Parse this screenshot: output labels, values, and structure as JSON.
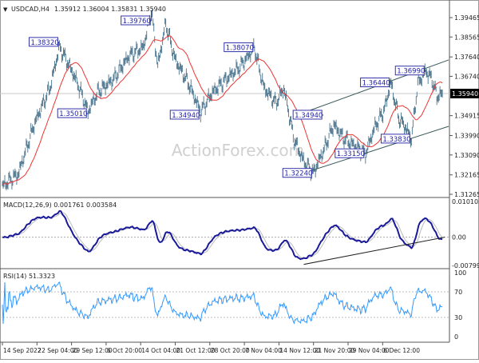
{
  "header": {
    "symbol": "USDCAD,H4",
    "ohlc": "1.35912 1.36004 1.35831 1.35940"
  },
  "watermark": "ActionForex.com",
  "colors": {
    "bars": "#5b8199",
    "ma": "#ee3333",
    "macd": "#1a1a9a",
    "signal": "#bbbbbb",
    "rsi": "#3399ff",
    "label_border": "#3333aa",
    "trendline": "#333333"
  },
  "chart_data": [
    {
      "type": "ohlc",
      "name_label": "USDCAD,H4",
      "current_price": "1.35940",
      "y_ticks": [
        "1.39465",
        "1.38565",
        "1.37640",
        "1.36740",
        "1.34915",
        "1.33990",
        "1.33090",
        "1.32165",
        "1.31265"
      ],
      "ylim": [
        1.31265,
        1.39465
      ],
      "x_ticks": [
        "14 Sep 2022",
        "22 Sep 04:00",
        "29 Sep 12:00",
        "6 Oct 20:00",
        "14 Oct 04:00",
        "21 Oct 12:00",
        "28 Oct 20:00",
        "7 Nov 04:00",
        "14 Nov 12:00",
        "21 Nov 20:00",
        "29 Nov 04:00",
        "6 Dec 12:00"
      ],
      "price_path": [
        [
          0,
          1.3165
        ],
        [
          20,
          1.322
        ],
        [
          40,
          1.345
        ],
        [
          60,
          1.362
        ],
        [
          72,
          1.381
        ],
        [
          85,
          1.372
        ],
        [
          95,
          1.364
        ],
        [
          108,
          1.351
        ],
        [
          120,
          1.36
        ],
        [
          140,
          1.366
        ],
        [
          160,
          1.377
        ],
        [
          178,
          1.381
        ],
        [
          188,
          1.3976
        ],
        [
          196,
          1.372
        ],
        [
          206,
          1.392
        ],
        [
          218,
          1.375
        ],
        [
          235,
          1.364
        ],
        [
          250,
          1.351
        ],
        [
          265,
          1.36
        ],
        [
          285,
          1.367
        ],
        [
          300,
          1.372
        ],
        [
          318,
          1.3807
        ],
        [
          330,
          1.362
        ],
        [
          345,
          1.355
        ],
        [
          355,
          1.362
        ],
        [
          368,
          1.338
        ],
        [
          380,
          1.328
        ],
        [
          392,
          1.3224
        ],
        [
          405,
          1.333
        ],
        [
          418,
          1.345
        ],
        [
          430,
          1.339
        ],
        [
          445,
          1.335
        ],
        [
          458,
          1.3315
        ],
        [
          470,
          1.344
        ],
        [
          482,
          1.352
        ],
        [
          490,
          1.3644
        ],
        [
          500,
          1.348
        ],
        [
          508,
          1.344
        ],
        [
          516,
          1.3383
        ],
        [
          524,
          1.364
        ],
        [
          534,
          1.3699
        ],
        [
          542,
          1.366
        ],
        [
          548,
          1.358
        ],
        [
          555,
          1.3594
        ]
      ],
      "labels": [
        {
          "text": "1.39760",
          "bar": 188,
          "price": 1.3976
        },
        {
          "text": "1.38320",
          "bar": 72,
          "price": 1.3832
        },
        {
          "text": "1.35010",
          "bar": 108,
          "price": 1.3501
        },
        {
          "text": "1.38070",
          "bar": 318,
          "price": 1.3807
        },
        {
          "text": "1.34940",
          "bar": 250,
          "price": 1.3494
        },
        {
          "text": "1.34940",
          "bar": 405,
          "price": 1.3494
        },
        {
          "text": "1.32240",
          "bar": 392,
          "price": 1.3224
        },
        {
          "text": "1.33150",
          "bar": 458,
          "price": 1.3315
        },
        {
          "text": "1.33830",
          "bar": 516,
          "price": 1.3383
        },
        {
          "text": "1.36440",
          "bar": 490,
          "price": 1.3644
        },
        {
          "text": "1.36990",
          "bar": 534,
          "price": 1.3699
        }
      ],
      "channel": {
        "upper": [
          [
            388,
            1.3516
          ],
          [
            563,
            1.375
          ]
        ],
        "lower": [
          [
            375,
            1.3219
          ],
          [
            563,
            1.3442
          ]
        ]
      }
    },
    {
      "type": "line",
      "title": "MACD(12,26,9) 0.001761 0.003584",
      "y_ticks": [
        "0.010103",
        "0.00",
        "-0.007998"
      ],
      "ylim": [
        -0.007998,
        0.010103
      ],
      "trendline": [
        [
          380,
          -0.0077
        ],
        [
          558,
          0.0
        ]
      ]
    },
    {
      "type": "line",
      "title": "RSI(14) 51.3323",
      "y_ticks": [
        "100",
        "70",
        "30",
        "0"
      ],
      "ylim": [
        0,
        100
      ],
      "levels": [
        70,
        30
      ]
    }
  ]
}
